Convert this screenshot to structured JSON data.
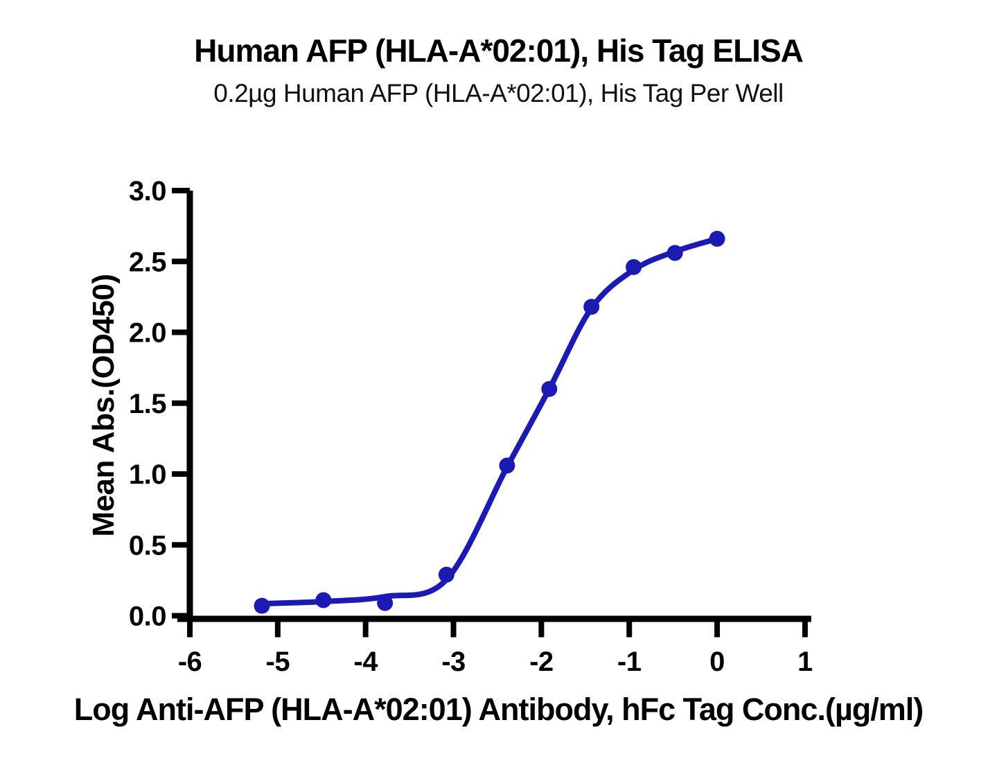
{
  "header": {
    "title": "Human AFP (HLA-A*02:01), His Tag ELISA",
    "subtitle": "0.2µg Human AFP (HLA-A*02:01), His Tag Per Well"
  },
  "chart_data": {
    "type": "scatter",
    "curve_style": "smooth 4PL sigmoid fit line through points",
    "title": "Human AFP (HLA-A*02:01), His Tag ELISA",
    "subtitle": "0.2µg Human AFP (HLA-A*02:01), His Tag Per Well",
    "xlabel": "Log Anti-AFP (HLA-A*02:01) Antibody, hFc Tag Conc.(µg/ml)",
    "ylabel": "Mean Abs.(OD450)",
    "xlim": [
      -6,
      1
    ],
    "ylim": [
      0,
      3
    ],
    "grid": false,
    "x_tick_values": [
      -6,
      -5,
      -4,
      -3,
      -2,
      -1,
      0,
      1
    ],
    "x_tick_labels": [
      "-6",
      "-5",
      "-4",
      "-3",
      "-2",
      "-1",
      "0",
      "1"
    ],
    "y_tick_values": [
      0,
      0.5,
      1,
      1.5,
      2,
      2.5,
      3
    ],
    "y_tick_labels": [
      "0.0",
      "0.5",
      "1.0",
      "1.5",
      "2.0",
      "2.5",
      "3.0"
    ],
    "colors": {
      "series": "#1B1BB4",
      "axis": "#000000",
      "background": "#FFFFFF"
    },
    "series": [
      {
        "points": [
          {
            "x": -5.18,
            "y": 0.07
          },
          {
            "x": -4.48,
            "y": 0.11
          },
          {
            "x": -3.78,
            "y": 0.09
          },
          {
            "x": -3.08,
            "y": 0.29
          },
          {
            "x": -2.39,
            "y": 1.06
          },
          {
            "x": -1.91,
            "y": 1.6
          },
          {
            "x": -1.43,
            "y": 2.18
          },
          {
            "x": -0.95,
            "y": 2.46
          },
          {
            "x": -0.48,
            "y": 2.56
          },
          {
            "x": 0.0,
            "y": 2.66
          }
        ],
        "fit_curve_points": [
          {
            "x": -5.18,
            "y": 0.085
          },
          {
            "x": -4.48,
            "y": 0.1
          },
          {
            "x": -3.78,
            "y": 0.135
          },
          {
            "x": -3.08,
            "y": 0.255
          },
          {
            "x": -2.39,
            "y": 1.05
          },
          {
            "x": -1.91,
            "y": 1.6
          },
          {
            "x": -1.43,
            "y": 2.17
          },
          {
            "x": -0.95,
            "y": 2.44
          },
          {
            "x": -0.48,
            "y": 2.57
          },
          {
            "x": 0.0,
            "y": 2.66
          }
        ]
      }
    ]
  }
}
